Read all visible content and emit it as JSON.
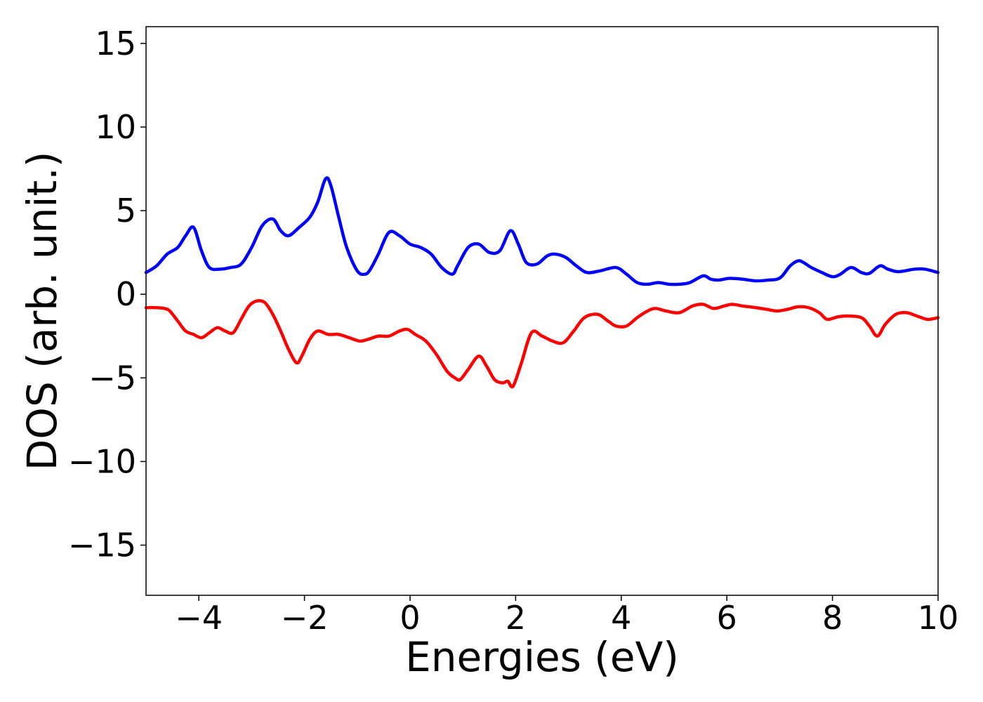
{
  "chart_data": {
    "type": "line",
    "title": "",
    "xlabel": "Energies (eV)",
    "ylabel": "DOS (arb. unit.)",
    "xlim": [
      -5,
      10
    ],
    "ylim": [
      -18,
      16
    ],
    "grid": false,
    "xticks": [
      {
        "value": -4,
        "label": "−4"
      },
      {
        "value": -2,
        "label": "−2"
      },
      {
        "value": 0,
        "label": "0"
      },
      {
        "value": 2,
        "label": "2"
      },
      {
        "value": 4,
        "label": "4"
      },
      {
        "value": 6,
        "label": "6"
      },
      {
        "value": 8,
        "label": "8"
      },
      {
        "value": 10,
        "label": "10"
      }
    ],
    "yticks": [
      {
        "value": 15,
        "label": "15"
      },
      {
        "value": 10,
        "label": "10"
      },
      {
        "value": 5,
        "label": "5"
      },
      {
        "value": 0,
        "label": "0"
      },
      {
        "value": -5,
        "label": "−5"
      },
      {
        "value": -10,
        "label": "−10"
      },
      {
        "value": -15,
        "label": "−15"
      }
    ],
    "series": [
      {
        "color": "#0000ff",
        "x": [
          -5.0,
          -4.8,
          -4.6,
          -4.4,
          -4.25,
          -4.1,
          -3.95,
          -3.8,
          -3.6,
          -3.4,
          -3.2,
          -3.0,
          -2.8,
          -2.6,
          -2.45,
          -2.3,
          -2.1,
          -1.9,
          -1.75,
          -1.6,
          -1.5,
          -1.35,
          -1.2,
          -1.0,
          -0.85,
          -0.75,
          -0.6,
          -0.4,
          -0.2,
          0.0,
          0.2,
          0.4,
          0.6,
          0.8,
          0.9,
          1.1,
          1.3,
          1.5,
          1.7,
          1.9,
          2.05,
          2.2,
          2.4,
          2.6,
          2.75,
          2.95,
          3.15,
          3.35,
          3.6,
          3.9,
          4.1,
          4.3,
          4.5,
          4.7,
          4.9,
          5.1,
          5.3,
          5.55,
          5.7,
          5.85,
          6.05,
          6.3,
          6.55,
          6.8,
          6.95,
          7.05,
          7.2,
          7.35,
          7.45,
          7.6,
          7.8,
          8.0,
          8.15,
          8.35,
          8.55,
          8.7,
          8.9,
          9.05,
          9.25,
          9.55,
          9.75,
          10.0
        ],
        "y": [
          1.3,
          1.7,
          2.4,
          2.8,
          3.5,
          4.0,
          2.6,
          1.6,
          1.5,
          1.6,
          1.8,
          2.8,
          4.1,
          4.5,
          3.8,
          3.5,
          4.0,
          4.6,
          5.5,
          6.9,
          6.5,
          4.6,
          2.8,
          1.4,
          1.2,
          1.5,
          2.4,
          3.7,
          3.5,
          3.0,
          2.8,
          2.4,
          1.6,
          1.2,
          1.7,
          2.8,
          3.0,
          2.5,
          2.6,
          3.8,
          3.0,
          1.9,
          1.8,
          2.3,
          2.4,
          2.2,
          1.7,
          1.3,
          1.4,
          1.6,
          1.2,
          0.7,
          0.6,
          0.7,
          0.6,
          0.6,
          0.7,
          1.1,
          0.9,
          0.85,
          0.95,
          0.9,
          0.8,
          0.85,
          0.9,
          1.1,
          1.7,
          2.0,
          1.9,
          1.6,
          1.3,
          1.05,
          1.2,
          1.6,
          1.3,
          1.25,
          1.7,
          1.5,
          1.35,
          1.5,
          1.5,
          1.3
        ]
      },
      {
        "color": "#ff0000",
        "x": [
          -5.0,
          -4.8,
          -4.65,
          -4.55,
          -4.4,
          -4.25,
          -4.1,
          -3.95,
          -3.8,
          -3.65,
          -3.5,
          -3.35,
          -3.2,
          -3.05,
          -2.9,
          -2.75,
          -2.6,
          -2.45,
          -2.3,
          -2.15,
          -2.05,
          -1.9,
          -1.75,
          -1.55,
          -1.35,
          -1.15,
          -0.95,
          -0.8,
          -0.6,
          -0.4,
          -0.2,
          -0.05,
          0.1,
          0.3,
          0.5,
          0.7,
          0.85,
          0.95,
          1.1,
          1.3,
          1.45,
          1.6,
          1.75,
          1.85,
          1.95,
          2.1,
          2.3,
          2.5,
          2.7,
          2.9,
          3.1,
          3.3,
          3.55,
          3.75,
          3.9,
          4.1,
          4.3,
          4.5,
          4.65,
          4.85,
          5.1,
          5.35,
          5.55,
          5.75,
          5.95,
          6.1,
          6.3,
          6.55,
          6.75,
          6.95,
          7.15,
          7.35,
          7.55,
          7.75,
          7.9,
          8.1,
          8.3,
          8.55,
          8.7,
          8.85,
          9.0,
          9.2,
          9.4,
          9.6,
          9.8,
          10.0
        ],
        "y": [
          -0.8,
          -0.8,
          -0.85,
          -1.0,
          -1.6,
          -2.2,
          -2.4,
          -2.6,
          -2.3,
          -2.0,
          -2.2,
          -2.3,
          -1.5,
          -0.7,
          -0.4,
          -0.5,
          -1.2,
          -2.2,
          -3.3,
          -4.1,
          -3.7,
          -2.7,
          -2.2,
          -2.4,
          -2.4,
          -2.6,
          -2.8,
          -2.7,
          -2.5,
          -2.5,
          -2.2,
          -2.1,
          -2.4,
          -2.8,
          -3.6,
          -4.6,
          -5.0,
          -5.1,
          -4.5,
          -3.7,
          -4.3,
          -5.1,
          -5.3,
          -5.2,
          -5.5,
          -4.2,
          -2.3,
          -2.5,
          -2.8,
          -2.9,
          -2.2,
          -1.4,
          -1.2,
          -1.6,
          -1.9,
          -1.9,
          -1.4,
          -1.0,
          -0.85,
          -1.0,
          -1.1,
          -0.7,
          -0.6,
          -0.85,
          -0.7,
          -0.6,
          -0.7,
          -0.8,
          -0.9,
          -1.0,
          -0.9,
          -0.75,
          -0.8,
          -1.1,
          -1.5,
          -1.35,
          -1.3,
          -1.4,
          -1.9,
          -2.5,
          -1.8,
          -1.2,
          -1.1,
          -1.3,
          -1.5,
          -1.4
        ]
      }
    ]
  }
}
